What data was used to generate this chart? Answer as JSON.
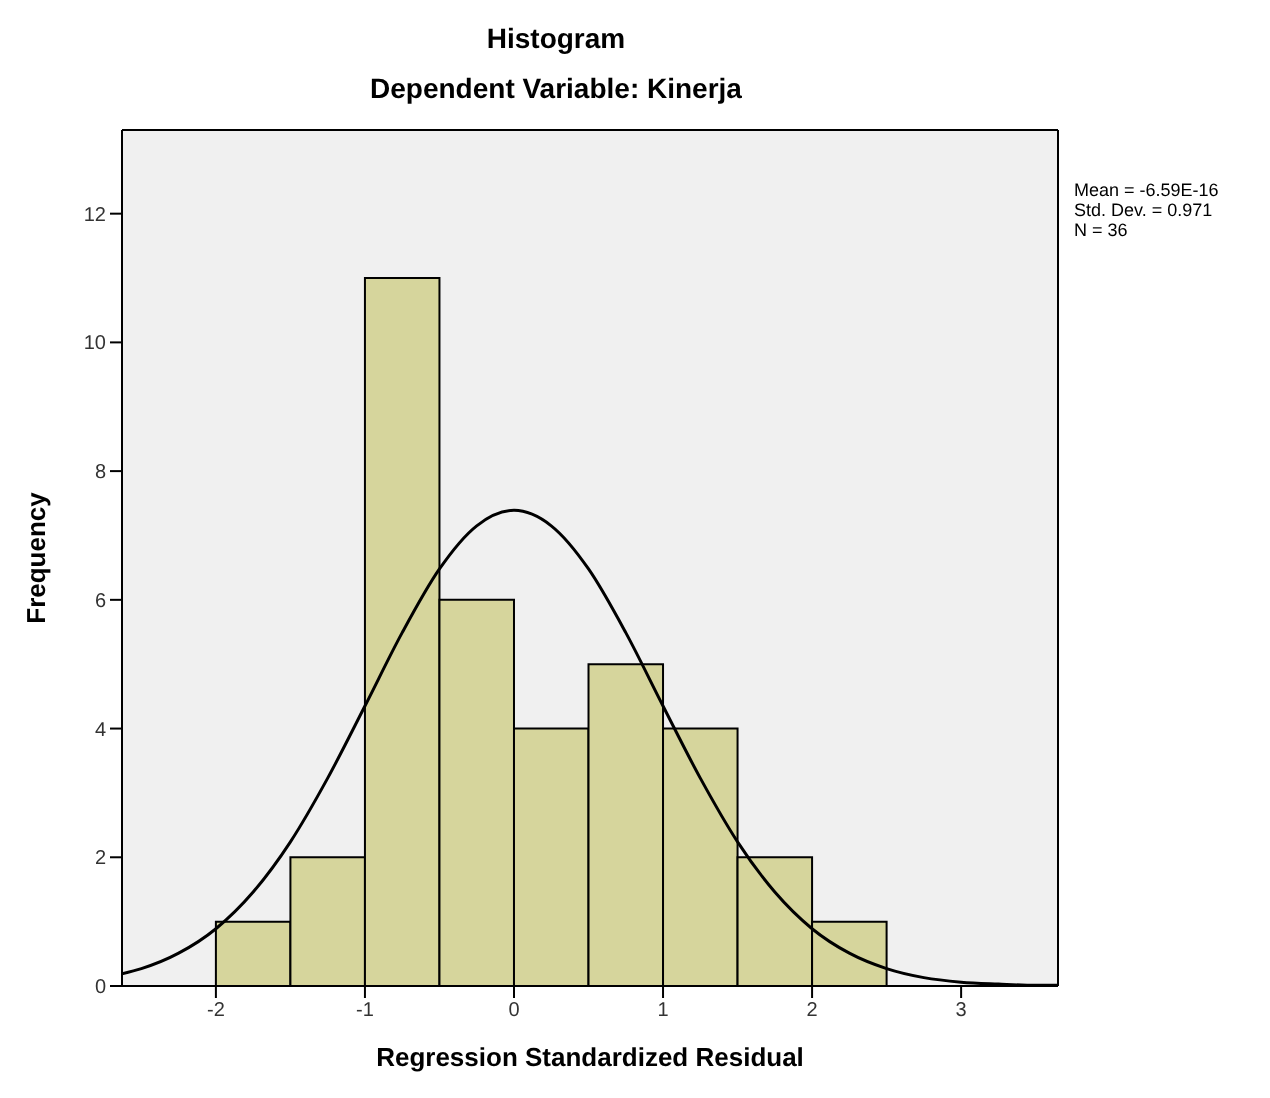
{
  "chart_data": {
    "type": "histogram",
    "title": "Histogram",
    "subtitle": "Dependent Variable: Kinerja",
    "xlabel": "Regression Standardized Residual",
    "ylabel": "Frequency",
    "bins": [
      -2,
      -1.5,
      -1,
      -0.5,
      0,
      0.5,
      1,
      1.5,
      2,
      2.5
    ],
    "values": [
      1,
      2,
      11,
      6,
      4,
      5,
      4,
      2,
      1
    ],
    "color": "#d6d59c",
    "series": [
      {
        "type": "line",
        "color": "#000000",
        "x": [
          -2.63,
          -2.5,
          -2.25,
          -2,
          -1.75,
          -1.5,
          -1.25,
          -1,
          -0.75,
          -0.5,
          -0.25,
          0,
          0.25,
          0.5,
          0.75,
          1,
          1.25,
          1.5,
          1.75,
          2,
          2.25,
          2.5,
          2.75,
          3,
          3.25,
          3.5,
          3.65
        ],
        "values": [
          0.19,
          0.27,
          0.51,
          0.89,
          1.46,
          2.24,
          3.23,
          4.35,
          5.49,
          6.48,
          7.15,
          7.39,
          7.15,
          6.48,
          5.49,
          4.35,
          3.23,
          2.24,
          1.46,
          0.89,
          0.51,
          0.27,
          0.13,
          0.06,
          0.03,
          0.01,
          0.01
        ]
      }
    ],
    "xlim": [
      -2.63,
      3.65
    ],
    "xticks": [
      -2,
      -1,
      0,
      1,
      2,
      3
    ],
    "ylim": [
      0,
      13.3
    ],
    "yticks": [
      0,
      2,
      4,
      6,
      8,
      10,
      12
    ],
    "grid": false,
    "marker": "none",
    "line_style": "solid",
    "annotations": [
      "Mean = -6.59E-16",
      "Std. Dev. = 0.971",
      "N = 36"
    ]
  }
}
